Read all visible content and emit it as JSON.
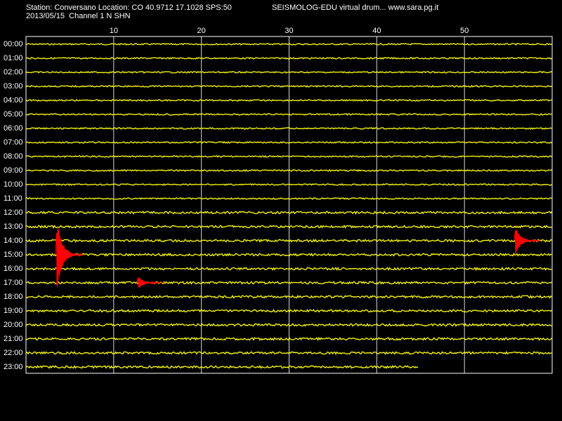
{
  "header": {
    "station_line": "Station: Conversano Location: CO 40.9712 17.1028 SPS:50",
    "date_line": "2013/05/15  Channel 1 N SHN",
    "brand": "SEISMOLOG-EDU virtual drum... www.sara.pg.it"
  },
  "minute_ticks": [
    "10",
    "20",
    "30",
    "40",
    "50"
  ],
  "hours": [
    "00:00",
    "01:00",
    "02:00",
    "03:00",
    "04:00",
    "05:00",
    "06:00",
    "07:00",
    "08:00",
    "09:00",
    "10:00",
    "11:00",
    "12:00",
    "13:00",
    "14:00",
    "15:00",
    "16:00",
    "17:00",
    "18:00",
    "19:00",
    "20:00",
    "21:00",
    "22:00",
    "23:00"
  ],
  "colors": {
    "background": "#000000",
    "trace": "#ffff00",
    "event": "#ff0000",
    "grid": "#ffffff",
    "text": "#ffffff"
  },
  "recording": {
    "last_hour_end_minute": 44.8
  },
  "events": [
    {
      "hour": "15:00",
      "minute": 3.5,
      "amplitude": "large"
    },
    {
      "hour": "17:00",
      "minute": 12.8,
      "amplitude": "small"
    },
    {
      "hour": "14:00",
      "minute": 55.8,
      "amplitude": "medium"
    }
  ]
}
